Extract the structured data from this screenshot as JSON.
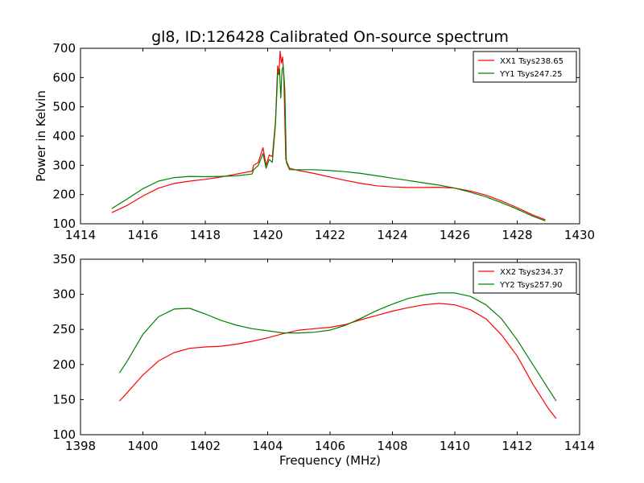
{
  "chart_data": [
    {
      "type": "line",
      "title": "gl8, ID:126428 Calibrated On-source spectrum",
      "xlabel": "",
      "ylabel": "Power in Kelvin",
      "xlim": [
        1414,
        1430
      ],
      "ylim": [
        100,
        700
      ],
      "xticks": [
        "1414",
        "1416",
        "1418",
        "1420",
        "1422",
        "1424",
        "1426",
        "1428",
        "1430"
      ],
      "yticks": [
        "100",
        "200",
        "300",
        "400",
        "500",
        "600",
        "700"
      ],
      "legend_position": "top-right",
      "grid": false,
      "series": [
        {
          "name": "XX1 Tsys238.65",
          "color": "#ff0000",
          "points": [
            [
              1415.0,
              138
            ],
            [
              1415.5,
              163
            ],
            [
              1416.0,
              195
            ],
            [
              1416.5,
              222
            ],
            [
              1417.0,
              238
            ],
            [
              1417.5,
              246
            ],
            [
              1418.0,
              252
            ],
            [
              1418.5,
              260
            ],
            [
              1419.0,
              270
            ],
            [
              1419.5,
              280
            ],
            [
              1419.55,
              300
            ],
            [
              1419.7,
              310
            ],
            [
              1419.85,
              360
            ],
            [
              1419.95,
              300
            ],
            [
              1420.05,
              335
            ],
            [
              1420.15,
              330
            ],
            [
              1420.25,
              450
            ],
            [
              1420.32,
              640
            ],
            [
              1420.36,
              610
            ],
            [
              1420.4,
              690
            ],
            [
              1420.44,
              650
            ],
            [
              1420.48,
              670
            ],
            [
              1420.52,
              600
            ],
            [
              1420.58,
              320
            ],
            [
              1420.7,
              290
            ],
            [
              1421.0,
              282
            ],
            [
              1421.5,
              272
            ],
            [
              1422.0,
              260
            ],
            [
              1422.5,
              248
            ],
            [
              1423.0,
              238
            ],
            [
              1423.5,
              230
            ],
            [
              1424.0,
              226
            ],
            [
              1424.5,
              224
            ],
            [
              1425.0,
              224
            ],
            [
              1425.5,
              225
            ],
            [
              1426.0,
              222
            ],
            [
              1426.5,
              212
            ],
            [
              1427.0,
              198
            ],
            [
              1427.5,
              178
            ],
            [
              1428.0,
              155
            ],
            [
              1428.5,
              130
            ],
            [
              1428.9,
              114
            ]
          ]
        },
        {
          "name": "YY1 Tsys247.25",
          "color": "#008000",
          "points": [
            [
              1415.0,
              152
            ],
            [
              1415.5,
              185
            ],
            [
              1416.0,
              220
            ],
            [
              1416.5,
              246
            ],
            [
              1417.0,
              258
            ],
            [
              1417.5,
              262
            ],
            [
              1418.0,
              261
            ],
            [
              1418.5,
              262
            ],
            [
              1419.0,
              264
            ],
            [
              1419.5,
              270
            ],
            [
              1419.55,
              285
            ],
            [
              1419.7,
              300
            ],
            [
              1419.85,
              340
            ],
            [
              1419.95,
              290
            ],
            [
              1420.05,
              320
            ],
            [
              1420.15,
              310
            ],
            [
              1420.25,
              440
            ],
            [
              1420.32,
              610
            ],
            [
              1420.38,
              630
            ],
            [
              1420.42,
              530
            ],
            [
              1420.46,
              625
            ],
            [
              1420.5,
              640
            ],
            [
              1420.55,
              560
            ],
            [
              1420.6,
              310
            ],
            [
              1420.7,
              285
            ],
            [
              1421.0,
              285
            ],
            [
              1421.5,
              285
            ],
            [
              1422.0,
              282
            ],
            [
              1422.5,
              278
            ],
            [
              1423.0,
              272
            ],
            [
              1423.5,
              264
            ],
            [
              1424.0,
              256
            ],
            [
              1424.5,
              248
            ],
            [
              1425.0,
              240
            ],
            [
              1425.5,
              232
            ],
            [
              1426.0,
              222
            ],
            [
              1426.5,
              208
            ],
            [
              1427.0,
              192
            ],
            [
              1427.5,
              172
            ],
            [
              1428.0,
              150
            ],
            [
              1428.5,
              126
            ],
            [
              1428.9,
              110
            ]
          ]
        }
      ]
    },
    {
      "type": "line",
      "title": "",
      "xlabel": "Frequency (MHz)",
      "ylabel": "",
      "xlim": [
        1398,
        1414
      ],
      "ylim": [
        100,
        350
      ],
      "xticks": [
        "1398",
        "1400",
        "1402",
        "1404",
        "1406",
        "1408",
        "1410",
        "1412",
        "1414"
      ],
      "yticks": [
        "100",
        "150",
        "200",
        "250",
        "300",
        "350"
      ],
      "legend_position": "top-right",
      "grid": false,
      "series": [
        {
          "name": "XX2 Tsys234.37",
          "color": "#ff0000",
          "points": [
            [
              1399.25,
              148
            ],
            [
              1399.5,
              160
            ],
            [
              1400.0,
              185
            ],
            [
              1400.5,
              205
            ],
            [
              1401.0,
              217
            ],
            [
              1401.5,
              223
            ],
            [
              1402.0,
              225
            ],
            [
              1402.5,
              226
            ],
            [
              1403.0,
              229
            ],
            [
              1403.5,
              233
            ],
            [
              1404.0,
              238
            ],
            [
              1404.5,
              244
            ],
            [
              1405.0,
              249
            ],
            [
              1405.5,
              251
            ],
            [
              1406.0,
              253
            ],
            [
              1406.5,
              257
            ],
            [
              1407.0,
              264
            ],
            [
              1407.5,
              270
            ],
            [
              1408.0,
              276
            ],
            [
              1408.5,
              281
            ],
            [
              1409.0,
              285
            ],
            [
              1409.5,
              287
            ],
            [
              1410.0,
              285
            ],
            [
              1410.5,
              278
            ],
            [
              1411.0,
              265
            ],
            [
              1411.5,
              242
            ],
            [
              1412.0,
              212
            ],
            [
              1412.5,
              172
            ],
            [
              1413.0,
              137
            ],
            [
              1413.25,
              123
            ]
          ]
        },
        {
          "name": "YY2 Tsys257.90",
          "color": "#008000",
          "points": [
            [
              1399.25,
              188
            ],
            [
              1399.5,
              205
            ],
            [
              1400.0,
              243
            ],
            [
              1400.5,
              268
            ],
            [
              1401.0,
              279
            ],
            [
              1401.5,
              280
            ],
            [
              1402.0,
              272
            ],
            [
              1402.5,
              263
            ],
            [
              1403.0,
              256
            ],
            [
              1403.5,
              251
            ],
            [
              1404.0,
              248
            ],
            [
              1404.5,
              245
            ],
            [
              1405.0,
              245
            ],
            [
              1405.5,
              246
            ],
            [
              1406.0,
              249
            ],
            [
              1406.5,
              256
            ],
            [
              1407.0,
              266
            ],
            [
              1407.5,
              277
            ],
            [
              1408.0,
              286
            ],
            [
              1408.5,
              294
            ],
            [
              1409.0,
              299
            ],
            [
              1409.5,
              302
            ],
            [
              1410.0,
              302
            ],
            [
              1410.5,
              297
            ],
            [
              1411.0,
              285
            ],
            [
              1411.5,
              265
            ],
            [
              1412.0,
              235
            ],
            [
              1412.5,
              200
            ],
            [
              1413.0,
              165
            ],
            [
              1413.25,
              148
            ]
          ]
        }
      ]
    }
  ]
}
